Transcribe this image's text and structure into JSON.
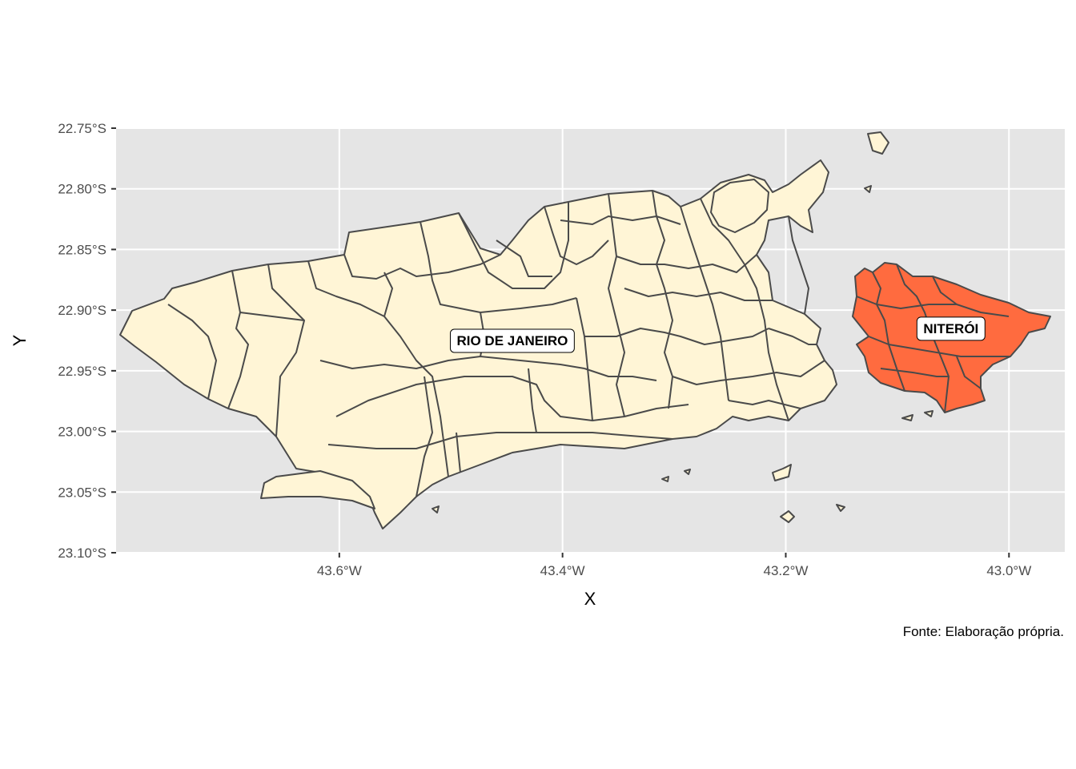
{
  "chart_data": {
    "type": "map",
    "xlabel": "X",
    "ylabel": "Y",
    "caption": "Fonte: Elaboração própria.",
    "xlim": [
      -43.8,
      -42.95
    ],
    "ylim": [
      -23.1,
      -22.75
    ],
    "x_ticks": [
      {
        "value": -43.6,
        "label": "43.6°W"
      },
      {
        "value": -43.4,
        "label": "43.4°W"
      },
      {
        "value": -43.2,
        "label": "43.2°W"
      },
      {
        "value": -43.0,
        "label": "43.0°W"
      }
    ],
    "y_ticks": [
      {
        "value": -22.75,
        "label": "22.75°S"
      },
      {
        "value": -22.8,
        "label": "22.80°S"
      },
      {
        "value": -22.85,
        "label": "22.85°S"
      },
      {
        "value": -22.9,
        "label": "22.90°S"
      },
      {
        "value": -22.95,
        "label": "22.95°S"
      },
      {
        "value": -23.0,
        "label": "23.00°S"
      },
      {
        "value": -23.05,
        "label": "23.05°S"
      },
      {
        "value": -23.1,
        "label": "23.10°S"
      }
    ],
    "regions": [
      {
        "name": "RIO DE JANEIRO",
        "fill": "#FFF5D6",
        "label_lon": -43.445,
        "label_lat": -22.925
      },
      {
        "name": "NITERÓI",
        "fill": "#FF6B3F",
        "label_lon": -43.052,
        "label_lat": -22.915
      }
    ],
    "grid": true,
    "panel_background": "#E5E5E5",
    "legend": "none"
  }
}
